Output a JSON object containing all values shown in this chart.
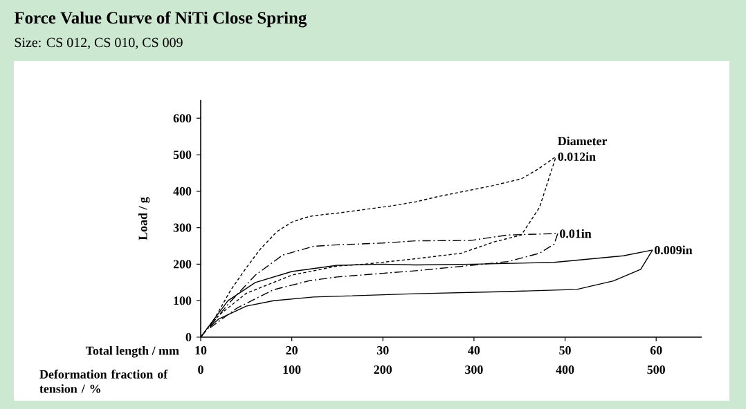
{
  "chart_data": {
    "type": "line",
    "title": "Force Value Curve of NiTi Close Spring",
    "subtitle": "Size:  CS 012, CS 010, CS 009",
    "xlabel": "Total length / mm",
    "ylabel": "Load / g",
    "x2label": "Deformation fraction of tension / %",
    "xlim": [
      10,
      65
    ],
    "xticks": [
      10,
      20,
      30,
      40,
      50,
      60
    ],
    "ylim": [
      0,
      650
    ],
    "yticks": [
      0,
      100,
      200,
      300,
      400,
      500,
      600
    ],
    "x2lim": [
      0,
      550
    ],
    "x2ticks": [
      0,
      100,
      200,
      300,
      400,
      500
    ],
    "grid": false,
    "legend": false,
    "marker": "none",
    "annotations": [
      "Diameter"
    ],
    "series": [
      {
        "name": "0.012in",
        "color": "#000000",
        "line_style": "dashed",
        "x": [
          10,
          11.5,
          13.3,
          15,
          16.5,
          18.4,
          20,
          21.5,
          22.4,
          25,
          28,
          31,
          33.6,
          36,
          39.6,
          42,
          45.2,
          47,
          49.0
        ],
        "values": [
          0,
          50,
          129,
          190,
          240,
          290,
          315,
          328,
          333,
          340,
          350,
          360,
          371,
          385,
          403,
          415,
          434,
          460,
          495
        ]
      },
      {
        "color": "#000000",
        "line_style": "dashed",
        "x": [
          11,
          12,
          15,
          20,
          25,
          28,
          33.6,
          38.6,
          42.2,
          45.2,
          47.2,
          49.0
        ],
        "values": [
          30,
          60,
          120,
          170,
          195,
          200,
          215,
          230,
          261,
          280,
          356,
          495
        ]
      },
      {
        "name": "0.01in",
        "color": "#000000",
        "line_style": "dashdot",
        "x": [
          10,
          13,
          16,
          19,
          22.4,
          25,
          30,
          33.6,
          39.6,
          43.7,
          49.2
        ],
        "values": [
          0,
          90,
          170,
          225,
          249,
          253,
          258,
          264,
          265,
          280,
          284
        ]
      },
      {
        "color": "#000000",
        "line_style": "dashdot",
        "x": [
          11,
          14,
          18,
          22,
          25,
          30,
          33.6,
          38.6,
          43.7,
          47.2,
          48.8,
          49.2
        ],
        "values": [
          25,
          80,
          130,
          155,
          165,
          175,
          182,
          194,
          207,
          230,
          255,
          284
        ]
      },
      {
        "name": "0.009in",
        "color": "#000000",
        "line_style": "solid",
        "x": [
          10,
          13,
          16,
          20,
          25,
          30,
          33.6,
          40,
          48.8,
          56.4,
          59.6
        ],
        "values": [
          0,
          100,
          150,
          180,
          197,
          200,
          198,
          200,
          205,
          223,
          239
        ]
      },
      {
        "color": "#000000",
        "line_style": "solid",
        "x": [
          11,
          12,
          15,
          18,
          22.4,
          33.6,
          43.7,
          51.3,
          55.3,
          58.3,
          59.6
        ],
        "values": [
          28,
          50,
          85,
          100,
          110,
          119,
          125,
          131,
          154,
          186,
          239
        ]
      }
    ]
  }
}
